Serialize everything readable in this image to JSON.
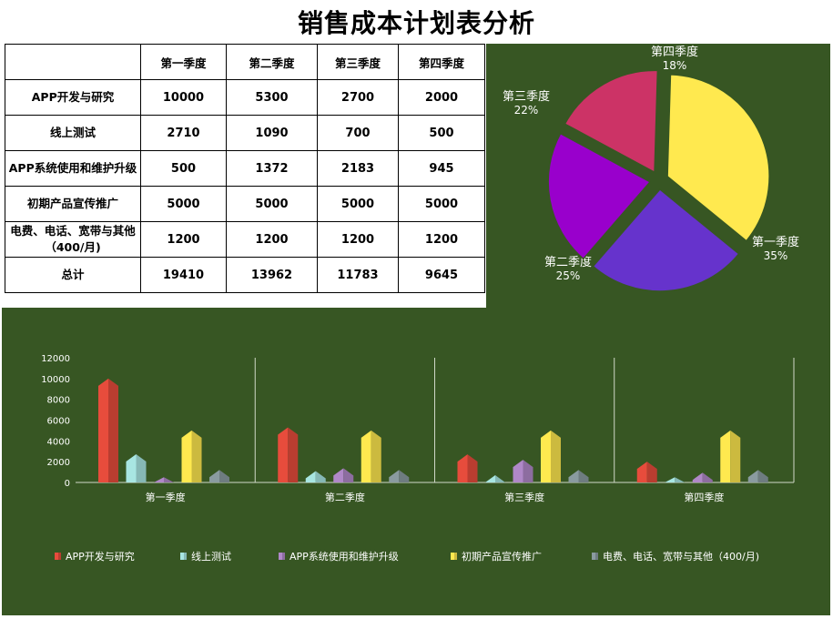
{
  "title": "销售成本计划表分析",
  "table": {
    "headers": [
      "第一季度",
      "第二季度",
      "第三季度",
      "第四季度"
    ],
    "rows": [
      {
        "label": "APP开发与研究",
        "values": [
          "10000",
          "5300",
          "2700",
          "2000"
        ]
      },
      {
        "label": "线上测试",
        "values": [
          "2710",
          "1090",
          "700",
          "500"
        ]
      },
      {
        "label": "APP系统使用和维护升级",
        "values": [
          "500",
          "1372",
          "2183",
          "945"
        ]
      },
      {
        "label": "初期产品宣传推广",
        "values": [
          "5000",
          "5000",
          "5000",
          "5000"
        ]
      },
      {
        "label": "电费、电话、宽带与其他（400/月)",
        "values": [
          "1200",
          "1200",
          "1200",
          "1200"
        ]
      },
      {
        "label": "总计",
        "values": [
          "19410",
          "13962",
          "11783",
          "9645"
        ]
      }
    ]
  },
  "chart_data": [
    {
      "type": "pie",
      "categories": [
        "第一季度",
        "第二季度",
        "第三季度",
        "第四季度"
      ],
      "values": [
        19410,
        13962,
        11783,
        9645
      ],
      "percent_labels": [
        "35%",
        "25%",
        "22%",
        "18%"
      ],
      "colors": [
        "#FFE94F",
        "#6633CC",
        "#9900CC",
        "#CC3366"
      ],
      "exploded": true
    },
    {
      "type": "bar",
      "categories": [
        "第一季度",
        "第二季度",
        "第三季度",
        "第四季度"
      ],
      "series": [
        {
          "name": "APP开发与研究",
          "values": [
            10000,
            5300,
            2700,
            2000
          ],
          "color": "#E74C3C"
        },
        {
          "name": "线上测试",
          "values": [
            2710,
            1090,
            700,
            500
          ],
          "color": "#A8E6E2"
        },
        {
          "name": "APP系统使用和维护升级",
          "values": [
            500,
            1372,
            2183,
            945
          ],
          "color": "#B088C8"
        },
        {
          "name": "初期产品宣传推广",
          "values": [
            5000,
            5000,
            5000,
            5000
          ],
          "color": "#FFE94F"
        },
        {
          "name": "电费、电话、宽带与其他（400/月)",
          "values": [
            1200,
            1200,
            1200,
            1200
          ],
          "color": "#8A9BA0"
        }
      ],
      "ylim": [
        0,
        12000
      ],
      "yticks": [
        0,
        2000,
        4000,
        6000,
        8000,
        10000,
        12000
      ],
      "legend": "bottom",
      "background": "#375623"
    }
  ]
}
